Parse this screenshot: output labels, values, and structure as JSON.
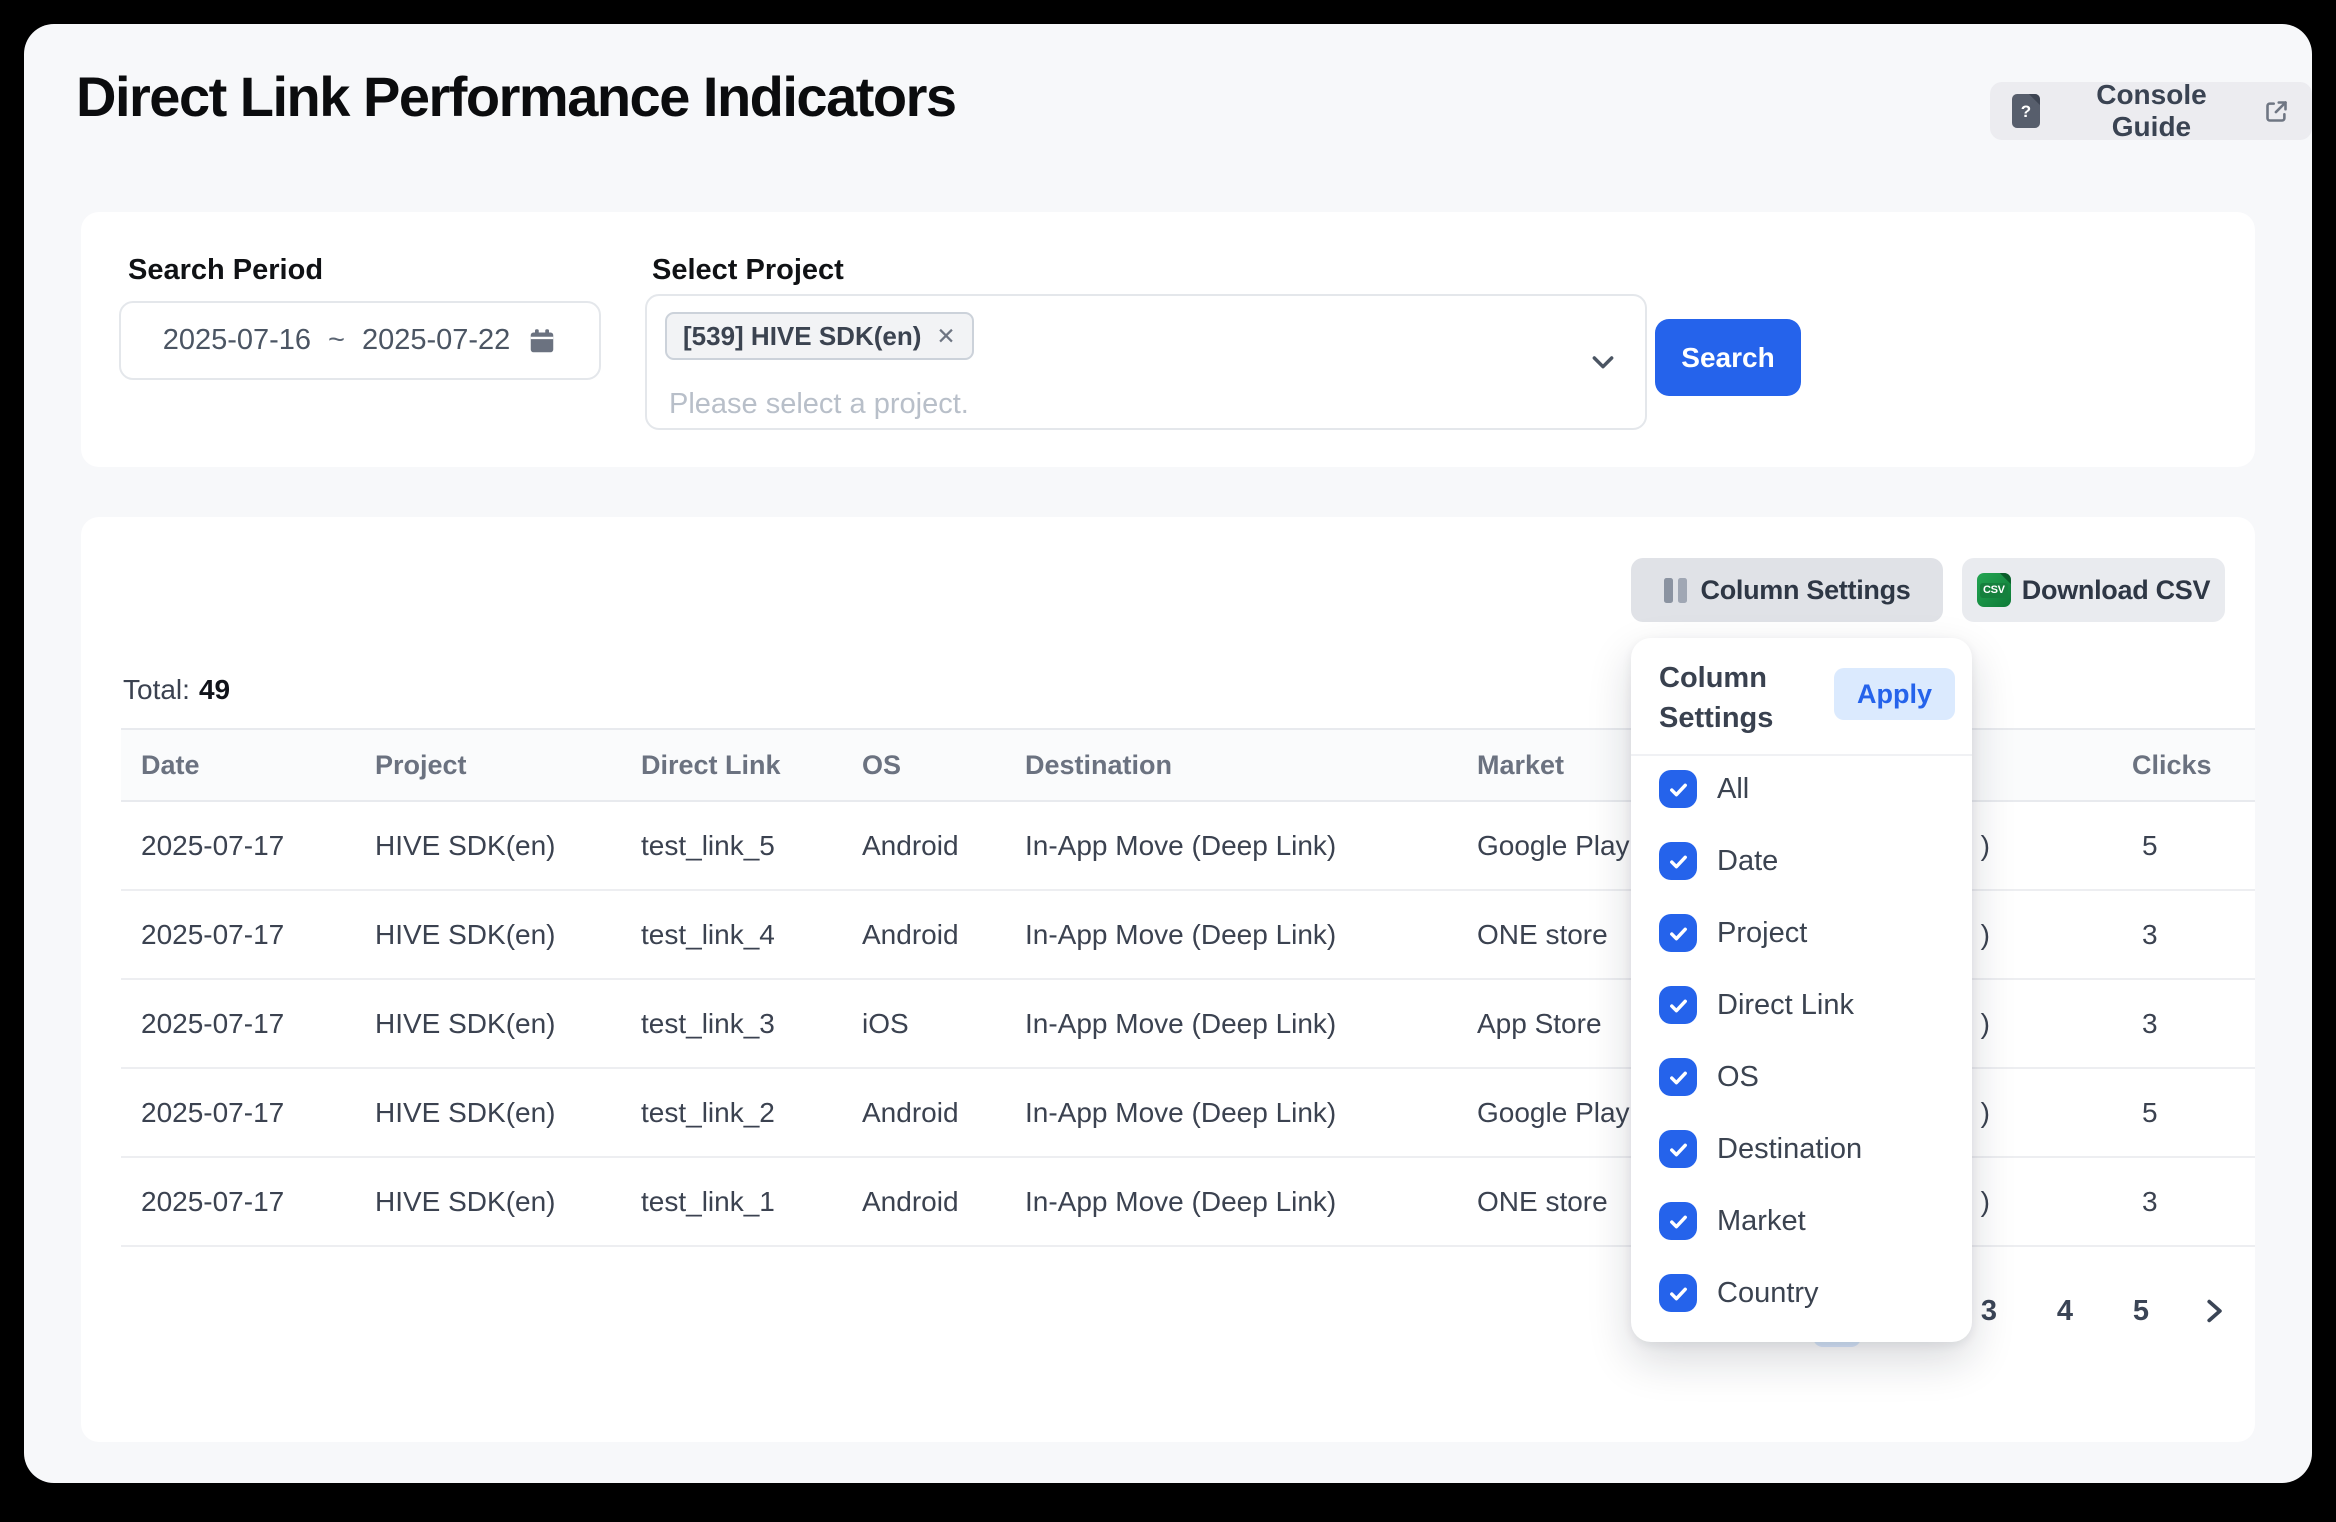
{
  "page": {
    "title": "Direct Link Performance Indicators",
    "console_guide": {
      "label": "Console Guide"
    }
  },
  "filters": {
    "search_period": {
      "label": "Search Period",
      "start_date": "2025-07-16",
      "separator": "~",
      "end_date": "2025-07-22"
    },
    "select_project": {
      "label": "Select Project",
      "selected_project_tag": "[539] HIVE SDK(en)",
      "remove_symbol": "✕",
      "placeholder": "Please select a project."
    },
    "search_button_label": "Search"
  },
  "toolbar": {
    "column_settings_label": "Column Settings",
    "download_csv_label": "Download CSV",
    "csv_badge": "CSV"
  },
  "summary": {
    "total_label": "Total:",
    "total_value": "49"
  },
  "table": {
    "headers": {
      "date": "Date",
      "project": "Project",
      "direct_link": "Direct Link",
      "os": "OS",
      "destination": "Destination",
      "market": "Market",
      "clicks": "Clicks"
    },
    "rows": [
      {
        "date": "2025-07-17",
        "project": "HIVE SDK(en)",
        "direct_link": "test_link_5",
        "os": "Android",
        "destination": "In-App Move (Deep Link)",
        "market": "Google Play",
        "country_visible": ")",
        "clicks": "5"
      },
      {
        "date": "2025-07-17",
        "project": "HIVE SDK(en)",
        "direct_link": "test_link_4",
        "os": "Android",
        "destination": "In-App Move (Deep Link)",
        "market": "ONE store",
        "country_visible": ")",
        "clicks": "3"
      },
      {
        "date": "2025-07-17",
        "project": "HIVE SDK(en)",
        "direct_link": "test_link_3",
        "os": "iOS",
        "destination": "In-App Move (Deep Link)",
        "market": "App Store",
        "country_visible": ")",
        "clicks": "3"
      },
      {
        "date": "2025-07-17",
        "project": "HIVE SDK(en)",
        "direct_link": "test_link_2",
        "os": "Android",
        "destination": "In-App Move (Deep Link)",
        "market": "Google Play",
        "country_visible": ")",
        "clicks": "5"
      },
      {
        "date": "2025-07-17",
        "project": "HIVE SDK(en)",
        "direct_link": "test_link_1",
        "os": "Android",
        "destination": "In-App Move (Deep Link)",
        "market": "ONE store",
        "country_visible": ")",
        "clicks": "3"
      }
    ]
  },
  "pagination": {
    "visible_pages": [
      "3",
      "4",
      "5"
    ],
    "active_page_sliver": true
  },
  "column_settings_popup": {
    "title": "Column Settings",
    "apply_label": "Apply",
    "options": [
      {
        "label": "All",
        "checked": true
      },
      {
        "label": "Date",
        "checked": true
      },
      {
        "label": "Project",
        "checked": true
      },
      {
        "label": "Direct Link",
        "checked": true
      },
      {
        "label": "OS",
        "checked": true
      },
      {
        "label": "Destination",
        "checked": true
      },
      {
        "label": "Market",
        "checked": true
      },
      {
        "label": "Country",
        "checked": true
      }
    ]
  },
  "colors": {
    "accent_blue": "#2563eb",
    "apply_button_bg": "#dbeafe",
    "active_page_bg": "#dbeafe",
    "csv_green": "#15803d"
  }
}
